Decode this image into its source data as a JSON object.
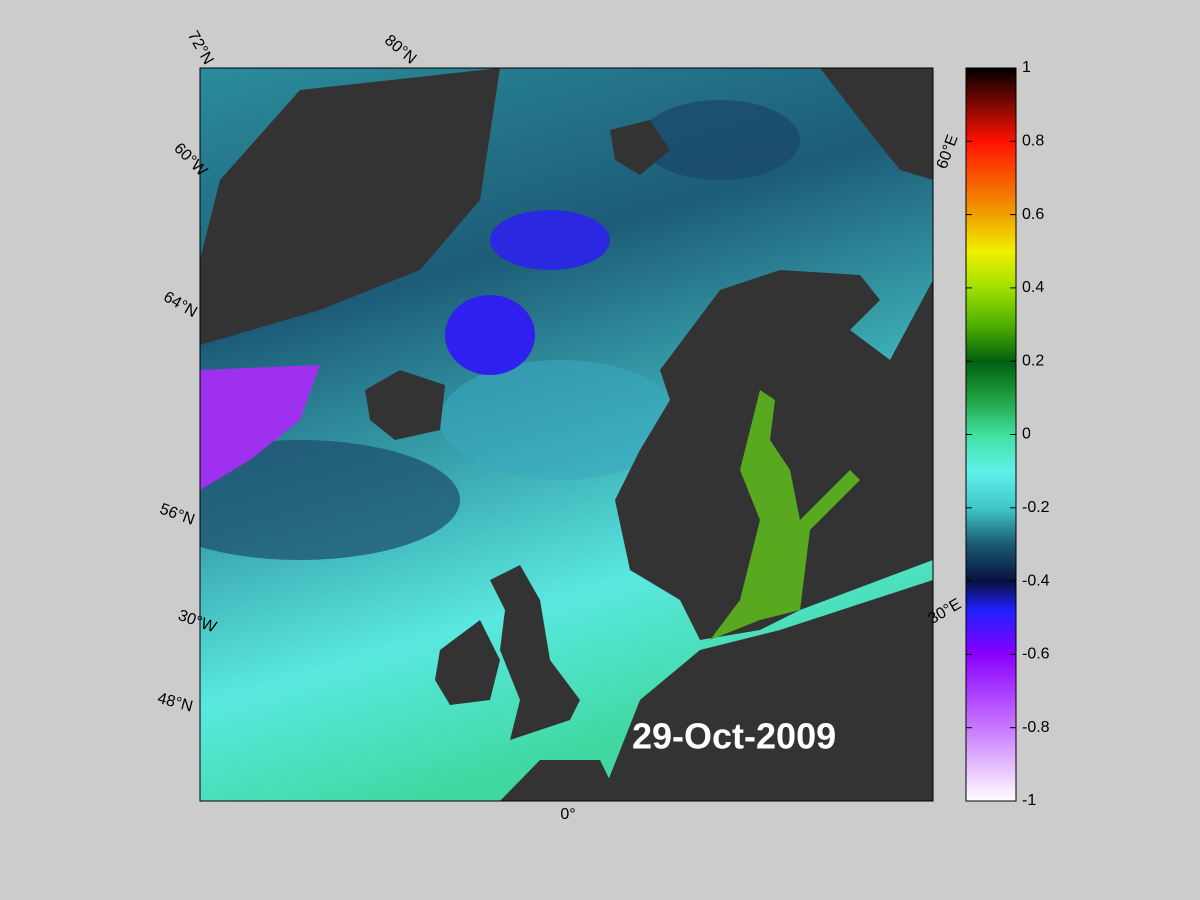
{
  "map": {
    "date": "29-Oct-2009",
    "labels": {
      "lat72": "72°N",
      "lat60w": "60°W",
      "lat64": "64°N",
      "lat56": "56°N",
      "lon30w": "30°W",
      "lat48": "48°N",
      "lat80": "80°N",
      "lon60e": "60°E",
      "lon30e": "30°E",
      "lon0": "0°"
    }
  },
  "colorbar": {
    "lim": [
      -1,
      1
    ],
    "ticks": [
      1,
      0.8,
      0.6,
      0.4,
      0.2,
      0,
      -0.2,
      -0.4,
      -0.6,
      -0.8,
      -1
    ]
  }
}
